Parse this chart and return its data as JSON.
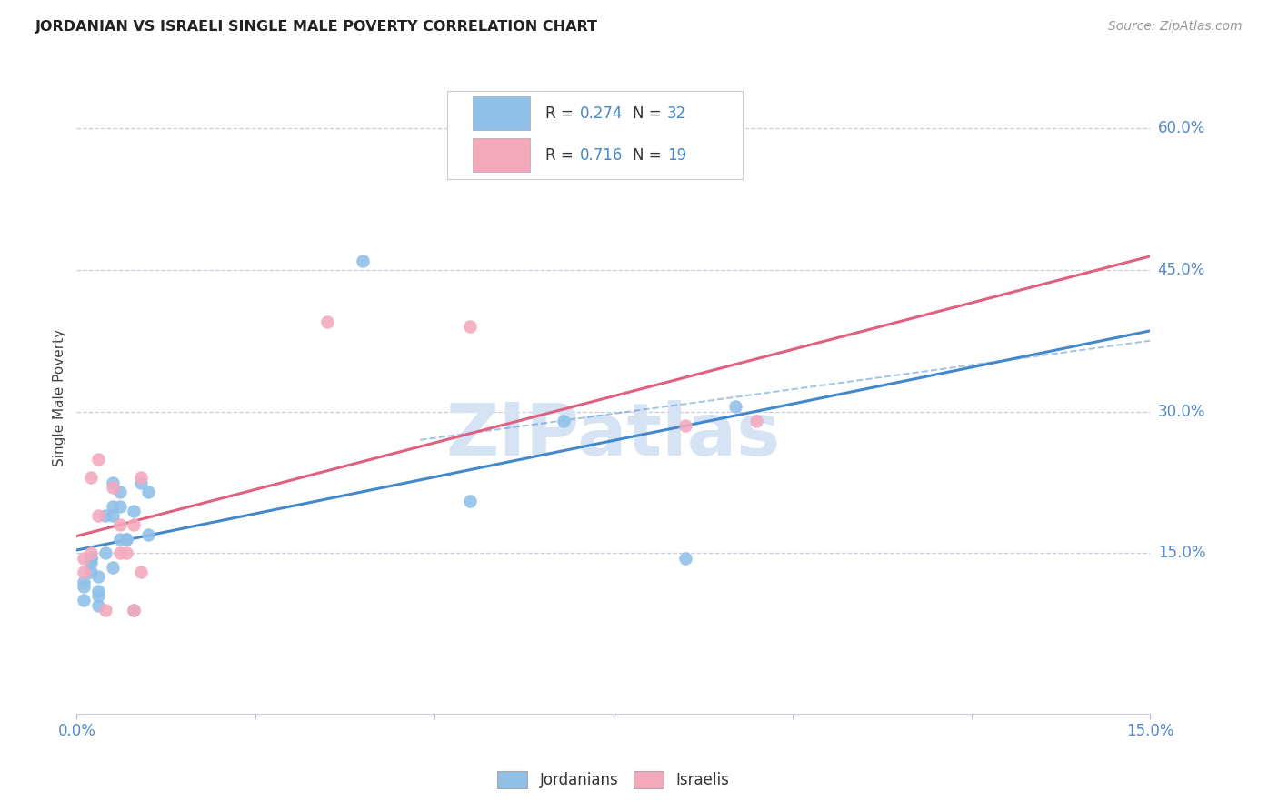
{
  "title": "JORDANIAN VS ISRAELI SINGLE MALE POVERTY CORRELATION CHART",
  "source": "Source: ZipAtlas.com",
  "ylabel": "Single Male Poverty",
  "xlim": [
    0.0,
    0.15
  ],
  "ylim": [
    -0.02,
    0.65
  ],
  "xtick_positions": [
    0.0,
    0.025,
    0.05,
    0.075,
    0.1,
    0.125,
    0.15
  ],
  "xticklabels": [
    "0.0%",
    "",
    "",
    "",
    "",
    "",
    "15.0%"
  ],
  "ytick_right_positions": [
    0.15,
    0.3,
    0.45,
    0.6
  ],
  "ytick_right_labels": [
    "15.0%",
    "30.0%",
    "45.0%",
    "60.0%"
  ],
  "jordan_scatter_color": "#90C0E8",
  "israel_scatter_color": "#F4A8BC",
  "jordan_line_color": "#4488CC",
  "israel_line_color": "#E06080",
  "jordan_R": 0.274,
  "jordan_N": 32,
  "israel_R": 0.716,
  "israel_N": 19,
  "bg_color": "#FFFFFF",
  "grid_color": "#DDEEFF",
  "tick_color": "#5588CC",
  "title_color": "#222222",
  "source_color": "#999999",
  "ylabel_color": "#444444",
  "watermark_color": "#D5E3F5",
  "legend_label_color": "#333333",
  "legend_value_color": "#4488CC",
  "jordan_x": [
    0.001,
    0.001,
    0.001,
    0.002,
    0.002,
    0.002,
    0.002,
    0.003,
    0.003,
    0.003,
    0.003,
    0.004,
    0.004,
    0.005,
    0.005,
    0.005,
    0.005,
    0.006,
    0.006,
    0.006,
    0.007,
    0.007,
    0.008,
    0.008,
    0.009,
    0.01,
    0.01,
    0.04,
    0.055,
    0.068,
    0.085,
    0.092
  ],
  "jordan_y": [
    0.12,
    0.115,
    0.1,
    0.13,
    0.14,
    0.145,
    0.145,
    0.125,
    0.11,
    0.105,
    0.095,
    0.19,
    0.15,
    0.135,
    0.2,
    0.225,
    0.19,
    0.165,
    0.2,
    0.215,
    0.165,
    0.165,
    0.195,
    0.09,
    0.225,
    0.215,
    0.17,
    0.46,
    0.205,
    0.29,
    0.145,
    0.305
  ],
  "israel_x": [
    0.001,
    0.001,
    0.002,
    0.002,
    0.003,
    0.003,
    0.004,
    0.005,
    0.006,
    0.006,
    0.007,
    0.008,
    0.008,
    0.009,
    0.009,
    0.035,
    0.055,
    0.085,
    0.095
  ],
  "israel_y": [
    0.13,
    0.145,
    0.23,
    0.15,
    0.25,
    0.19,
    0.09,
    0.22,
    0.18,
    0.15,
    0.15,
    0.09,
    0.18,
    0.23,
    0.13,
    0.395,
    0.39,
    0.285,
    0.29
  ]
}
